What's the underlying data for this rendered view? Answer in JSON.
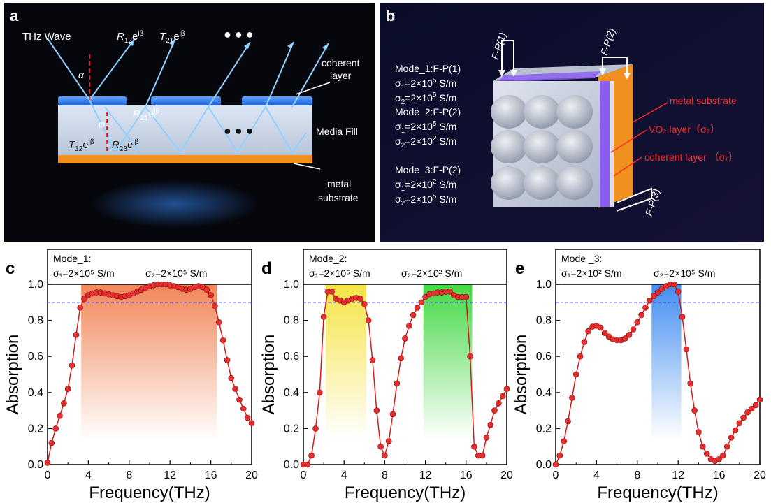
{
  "panel_a": {
    "letter": "a",
    "wave_label": "THz Wave",
    "alpha": "α",
    "phi": "φ",
    "R12": {
      "base": "R",
      "sub": "12",
      "sup": "iβ"
    },
    "T21": {
      "base": "T",
      "sub": "21",
      "sup": "iβ"
    },
    "R21": {
      "base": "R",
      "sub": "21",
      "sup": "iβ"
    },
    "T12": {
      "base": "T",
      "sub": "12",
      "sup": "iβ"
    },
    "R23": {
      "base": "R",
      "sub": "23",
      "sup": "iβ"
    },
    "coherent_layer": [
      "coherent",
      "layer"
    ],
    "media_fill": "Media Fill",
    "metal_substrate": [
      "metal",
      "substrate"
    ],
    "dots": "● ● ●"
  },
  "panel_b": {
    "letter": "b",
    "fp1": "F-P(1)",
    "fp2": "F-P(2)",
    "fp3": "F-P(3)",
    "modes": [
      {
        "title": "Mode_1:F-P(1)",
        "s1_exp": "5",
        "s2_exp": "5"
      },
      {
        "title": "Mode_2:F-P(2)",
        "s1_exp": "5",
        "s2_exp": "2"
      },
      {
        "title": "Mode_3:F-P(2)",
        "s1_exp": "2",
        "s2_exp": "5"
      }
    ],
    "metal_substrate": "metal substrate",
    "vo2_layer": "VO₂ layer（σ₂）",
    "coherent_layer": "coherent layer （σ₁）",
    "colors": {
      "accent_red": "#ff2a2a",
      "orange": "#f0901e",
      "purple": "#8a5cf0"
    }
  },
  "chart_data": [
    {
      "type": "line",
      "panel": "c",
      "mode_title": "Mode_1:",
      "sigma1": "σ₁=2×10⁵ S/m",
      "sigma2": "σ₂=2×10⁵ S/m",
      "xlabel": "Frequency(THz)",
      "ylabel": "Absorption",
      "xlim": [
        0,
        20
      ],
      "ylim": [
        0,
        1.0
      ],
      "xticks": [
        "0",
        "4",
        "8",
        "12",
        "16",
        "20"
      ],
      "yticks": [
        "0.0",
        "0.2",
        "0.4",
        "0.6",
        "0.8",
        "1.0"
      ],
      "reference_line": 0.9,
      "bands": [
        {
          "range": [
            3.3,
            16.6
          ],
          "color": "#f08050"
        }
      ],
      "series": [
        {
          "x": [
            0,
            0.4,
            0.8,
            1.2,
            1.6,
            2.0,
            2.4,
            2.8,
            3.2,
            3.6,
            4.0,
            4.4,
            4.8,
            5.2,
            5.6,
            6.0,
            6.4,
            6.8,
            7.2,
            7.6,
            8.0,
            8.4,
            8.8,
            9.2,
            9.6,
            10.0,
            10.4,
            10.8,
            11.2,
            11.6,
            12.0,
            12.4,
            12.8,
            13.2,
            13.6,
            14.0,
            14.4,
            14.8,
            15.2,
            15.6,
            16.0,
            16.4,
            16.8,
            17.2,
            17.6,
            18.0,
            18.4,
            18.8,
            19.2,
            19.6,
            20.0
          ],
          "y": [
            0.01,
            0.12,
            0.2,
            0.27,
            0.34,
            0.42,
            0.55,
            0.72,
            0.87,
            0.92,
            0.94,
            0.95,
            0.955,
            0.955,
            0.95,
            0.945,
            0.94,
            0.935,
            0.93,
            0.935,
            0.94,
            0.95,
            0.96,
            0.97,
            0.98,
            0.99,
            0.995,
            1.0,
            1.0,
            1.0,
            0.995,
            0.99,
            0.985,
            0.975,
            0.97,
            0.975,
            0.985,
            0.99,
            0.985,
            0.97,
            0.94,
            0.88,
            0.79,
            0.69,
            0.58,
            0.48,
            0.42,
            0.36,
            0.31,
            0.26,
            0.23
          ]
        }
      ]
    },
    {
      "type": "line",
      "panel": "d",
      "mode_title": "Mode_2:",
      "sigma1": "σ₁=2×10⁵ S/m",
      "sigma2": "σ₂=2×10² S/m",
      "xlabel": "Frequency(THz)",
      "ylabel": "Absorption",
      "xlim": [
        0,
        20
      ],
      "ylim": [
        0,
        1.0
      ],
      "xticks": [
        "0",
        "4",
        "8",
        "12",
        "16",
        "20"
      ],
      "yticks": [
        "0.0",
        "0.2",
        "0.4",
        "0.6",
        "0.8",
        "1.0"
      ],
      "reference_line": 0.9,
      "bands": [
        {
          "range": [
            2.2,
            6.2
          ],
          "color": "#f4e23a"
        },
        {
          "range": [
            11.8,
            16.6
          ],
          "color": "#3ad63a"
        }
      ],
      "series": [
        {
          "x": [
            0,
            0.4,
            0.8,
            1.2,
            1.6,
            2.0,
            2.4,
            2.8,
            3.2,
            3.6,
            4.0,
            4.4,
            4.8,
            5.2,
            5.6,
            6.0,
            6.4,
            6.8,
            7.2,
            7.6,
            8.0,
            8.4,
            8.8,
            9.2,
            9.6,
            10.0,
            10.4,
            10.8,
            11.2,
            11.6,
            12.0,
            12.4,
            12.8,
            13.2,
            13.6,
            14.0,
            14.4,
            14.8,
            15.2,
            15.6,
            16.0,
            16.4,
            16.8,
            17.2,
            17.6,
            18.0,
            18.4,
            18.8,
            19.2,
            19.6,
            20.0
          ],
          "y": [
            0.0,
            0.0,
            0.05,
            0.2,
            0.4,
            0.82,
            0.96,
            0.96,
            0.92,
            0.91,
            0.9,
            0.91,
            0.92,
            0.925,
            0.92,
            0.89,
            0.8,
            0.58,
            0.3,
            0.1,
            0.05,
            0.13,
            0.28,
            0.45,
            0.59,
            0.7,
            0.77,
            0.83,
            0.87,
            0.9,
            0.93,
            0.945,
            0.95,
            0.955,
            0.955,
            0.96,
            0.96,
            0.94,
            0.93,
            0.93,
            0.93,
            0.6,
            0.1,
            0.05,
            0.05,
            0.15,
            0.22,
            0.3,
            0.34,
            0.38,
            0.42
          ]
        }
      ]
    },
    {
      "type": "line",
      "panel": "e",
      "mode_title": "Mode _3:",
      "sigma1": "σ₁=2×10² S/m",
      "sigma2": "σ₂=2×10⁵ S/m",
      "xlabel": "Frequency(THz)",
      "ylabel": "Absorption",
      "xlim": [
        0,
        20
      ],
      "ylim": [
        0,
        1.0
      ],
      "xticks": [
        "0",
        "4",
        "8",
        "12",
        "16",
        "20"
      ],
      "yticks": [
        "0.0",
        "0.2",
        "0.4",
        "0.6",
        "0.8",
        "1.0"
      ],
      "reference_line": 0.9,
      "bands": [
        {
          "range": [
            9.4,
            12.3
          ],
          "color": "#3a88f0"
        }
      ],
      "series": [
        {
          "x": [
            0,
            0.4,
            0.8,
            1.2,
            1.6,
            2.0,
            2.4,
            2.8,
            3.2,
            3.6,
            4.0,
            4.4,
            4.8,
            5.2,
            5.6,
            6.0,
            6.4,
            6.8,
            7.2,
            7.6,
            8.0,
            8.4,
            8.8,
            9.2,
            9.6,
            10.0,
            10.4,
            10.8,
            11.2,
            11.6,
            12.0,
            12.4,
            12.8,
            13.2,
            13.6,
            14.0,
            14.4,
            14.8,
            15.2,
            15.6,
            16.0,
            16.4,
            16.8,
            17.2,
            17.6,
            18.0,
            18.4,
            18.8,
            19.2,
            19.6,
            20.0
          ],
          "y": [
            0.0,
            0.05,
            0.13,
            0.24,
            0.37,
            0.5,
            0.6,
            0.68,
            0.74,
            0.765,
            0.77,
            0.76,
            0.73,
            0.71,
            0.695,
            0.69,
            0.69,
            0.7,
            0.72,
            0.75,
            0.79,
            0.83,
            0.87,
            0.91,
            0.935,
            0.955,
            0.975,
            0.99,
            1.0,
            1.0,
            0.96,
            0.82,
            0.64,
            0.45,
            0.3,
            0.18,
            0.1,
            0.06,
            0.03,
            0.02,
            0.03,
            0.05,
            0.1,
            0.15,
            0.19,
            0.23,
            0.26,
            0.29,
            0.31,
            0.33,
            0.36
          ]
        }
      ]
    }
  ]
}
